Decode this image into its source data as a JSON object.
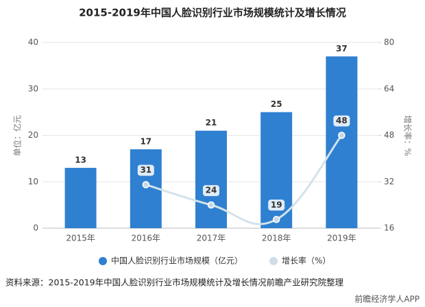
{
  "chart_data": {
    "type": "bar-line",
    "title": "2015-2019年中国人脸识别行业市场规模统计及增长情况",
    "categories": [
      "2015年",
      "2016年",
      "2017年",
      "2018年",
      "2019年"
    ],
    "series": [
      {
        "name": "中国人脸识别行业市场规模（亿元）",
        "color": "#2f80d1",
        "type": "bar",
        "values": [
          13,
          17,
          21,
          25,
          37
        ]
      },
      {
        "name": "增长率（%）",
        "color": "#d3e2ea",
        "type": "line",
        "axis": "y2",
        "values": [
          null,
          31,
          24,
          19,
          48
        ]
      }
    ],
    "ylabel": "单位：亿元",
    "y2label": "增长率：%",
    "ylim": [
      0,
      40
    ],
    "yticks": [
      0,
      10,
      20,
      30,
      40
    ],
    "y2lim": [
      16,
      80
    ],
    "y2ticks": [
      16,
      32,
      48,
      64,
      80
    ],
    "legend": "bottom",
    "source": "资料来源：2015-2019年中国人脸识别行业市场规模统计及增长情况前瞻产业研究院整理",
    "brand": "前瞻经济学人APP"
  }
}
